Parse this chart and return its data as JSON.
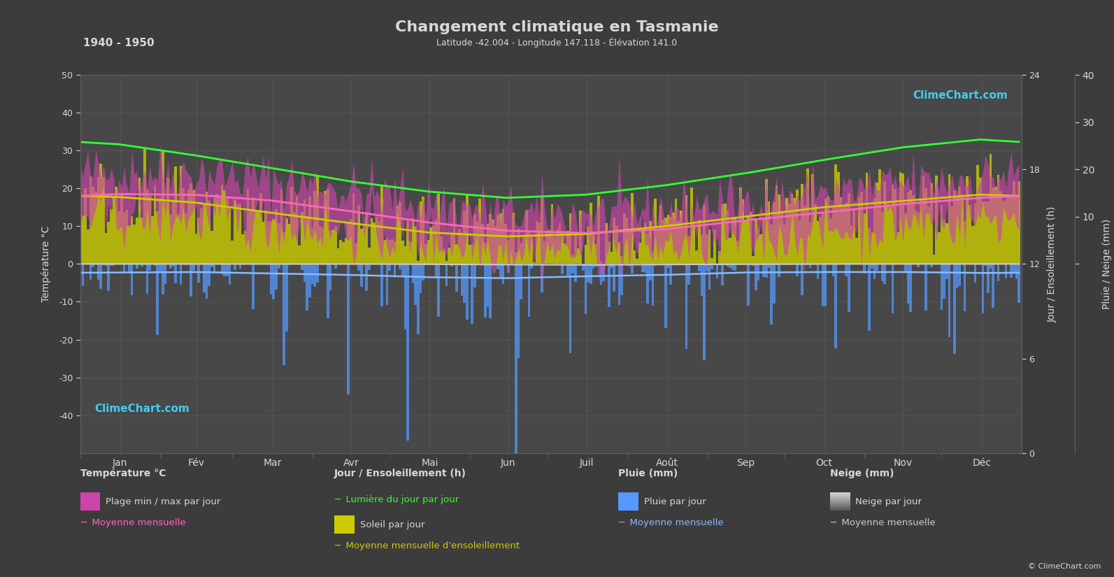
{
  "title": "Changement climatique en Tasmanie",
  "subtitle": "Latitude -42.004 - Longitude 147.118 - Élévation 141.0",
  "period": "1940 - 1950",
  "bg_color": "#3c3c3c",
  "plot_bg_color": "#484848",
  "grid_color": "#606060",
  "text_color": "#d8d8d8",
  "months": [
    "Jan",
    "Fév",
    "Mar",
    "Avr",
    "Mai",
    "Jun",
    "Juil",
    "Août",
    "Sep",
    "Oct",
    "Nov",
    "Déc"
  ],
  "ylabel_left": "Température °C",
  "ylabel_right_top": "Jour / Ensoleillement (h)",
  "ylabel_right_bottom": "Pluie / Neige (mm)",
  "ylim_left": [
    -50,
    50
  ],
  "yticks_left": [
    -40,
    -30,
    -20,
    -10,
    0,
    10,
    20,
    30,
    40,
    50
  ],
  "n_days": 365,
  "temp_max_monthly": [
    24.5,
    24.2,
    22.5,
    19.5,
    16.0,
    13.5,
    12.8,
    14.0,
    16.5,
    18.8,
    21.0,
    23.0
  ],
  "temp_min_monthly": [
    12.5,
    12.5,
    11.0,
    8.5,
    6.0,
    4.2,
    3.5,
    4.5,
    6.5,
    8.5,
    10.5,
    12.0
  ],
  "temp_mean_monthly": [
    18.5,
    18.3,
    16.8,
    14.0,
    11.0,
    8.8,
    8.2,
    9.2,
    11.5,
    13.6,
    15.8,
    17.5
  ],
  "sunshine_hours_monthly": [
    8.5,
    7.8,
    6.5,
    5.2,
    4.0,
    3.5,
    3.8,
    4.8,
    6.0,
    7.2,
    8.0,
    8.8
  ],
  "daylight_hours_monthly": [
    15.2,
    13.8,
    12.2,
    10.5,
    9.2,
    8.4,
    8.8,
    10.0,
    11.5,
    13.2,
    14.8,
    15.8
  ],
  "rain_daily_mean": [
    1.8,
    1.7,
    2.0,
    2.3,
    2.8,
    3.0,
    2.6,
    2.3,
    1.8,
    1.7,
    1.7,
    1.9
  ],
  "snow_daily_mean": [
    0.0,
    0.0,
    0.0,
    0.0,
    0.05,
    0.15,
    0.2,
    0.1,
    0.05,
    0.0,
    0.0,
    0.0
  ],
  "temp_mean_color": "#ff66bb",
  "sunshine_color": "#cccc00",
  "daylight_color": "#33ff33",
  "rain_color": "#5599ff",
  "snow_color": "#aaaacc",
  "rain_mean_color": "#88bbff",
  "snow_mean_color": "#cccccc",
  "temp_fill_color": "#cc44aa"
}
